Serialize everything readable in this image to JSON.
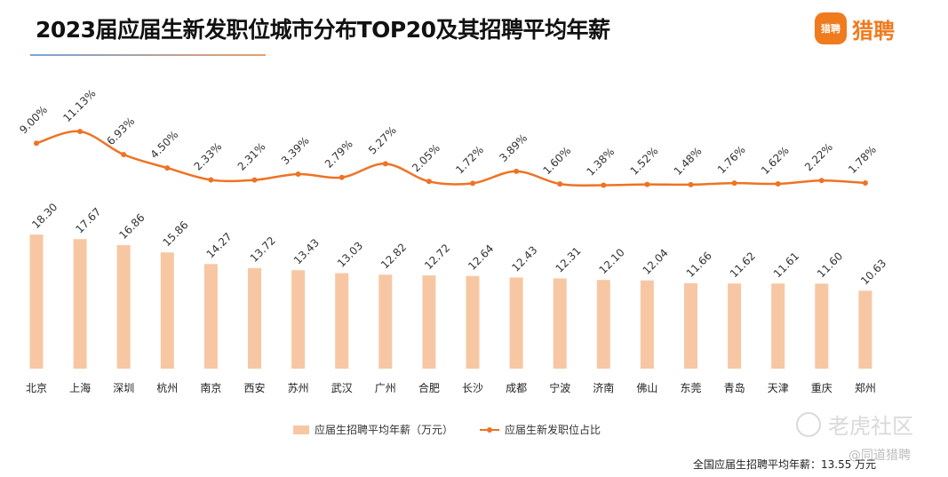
{
  "title": "2023届应届生新发职位城市分布TOP20及其招聘平均年薪",
  "brand": {
    "badge": "猎聘",
    "name": "猎聘"
  },
  "watermark": {
    "main": "老虎社区",
    "sub": "@同道猎聘"
  },
  "legend": {
    "bar_label": "应届生招聘平均年薪（万元）",
    "line_label": "应届生新发职位占比"
  },
  "footnote": "全国应届生招聘平均年薪：13.55 万元",
  "colors": {
    "bar": "#f7c7a3",
    "line": "#ee7324",
    "text": "#333333"
  },
  "chart_data": {
    "type": "bar+line",
    "categories": [
      "北京",
      "上海",
      "深圳",
      "杭州",
      "南京",
      "西安",
      "苏州",
      "武汉",
      "广州",
      "合肥",
      "长沙",
      "成都",
      "宁波",
      "济南",
      "佛山",
      "东莞",
      "青岛",
      "天津",
      "重庆",
      "郑州"
    ],
    "series": [
      {
        "name": "应届生招聘平均年薪（万元）",
        "type": "bar",
        "values": [
          18.3,
          17.67,
          16.86,
          15.86,
          14.27,
          13.72,
          13.43,
          13.03,
          12.82,
          12.72,
          12.64,
          12.43,
          12.31,
          12.1,
          12.04,
          11.66,
          11.62,
          11.61,
          11.6,
          10.63
        ],
        "labels": [
          "18.30",
          "17.67",
          "16.86",
          "15.86",
          "14.27",
          "13.72",
          "13.43",
          "13.03",
          "12.82",
          "12.72",
          "12.64",
          "12.43",
          "12.31",
          "12.10",
          "12.04",
          "11.66",
          "11.62",
          "11.61",
          "11.60",
          "10.63"
        ]
      },
      {
        "name": "应届生新发职位占比",
        "type": "line",
        "values": [
          9.0,
          11.13,
          6.93,
          4.5,
          2.33,
          2.31,
          3.39,
          2.79,
          5.27,
          2.05,
          1.72,
          3.89,
          1.6,
          1.38,
          1.52,
          1.48,
          1.76,
          1.62,
          2.22,
          1.78
        ],
        "labels": [
          "9.00%",
          "11.13%",
          "6.93%",
          "4.50%",
          "2.33%",
          "2.31%",
          "3.39%",
          "2.79%",
          "5.27%",
          "2.05%",
          "1.72%",
          "3.89%",
          "1.60%",
          "1.38%",
          "1.52%",
          "1.48%",
          "1.76%",
          "1.62%",
          "2.22%",
          "1.78%"
        ]
      }
    ]
  }
}
